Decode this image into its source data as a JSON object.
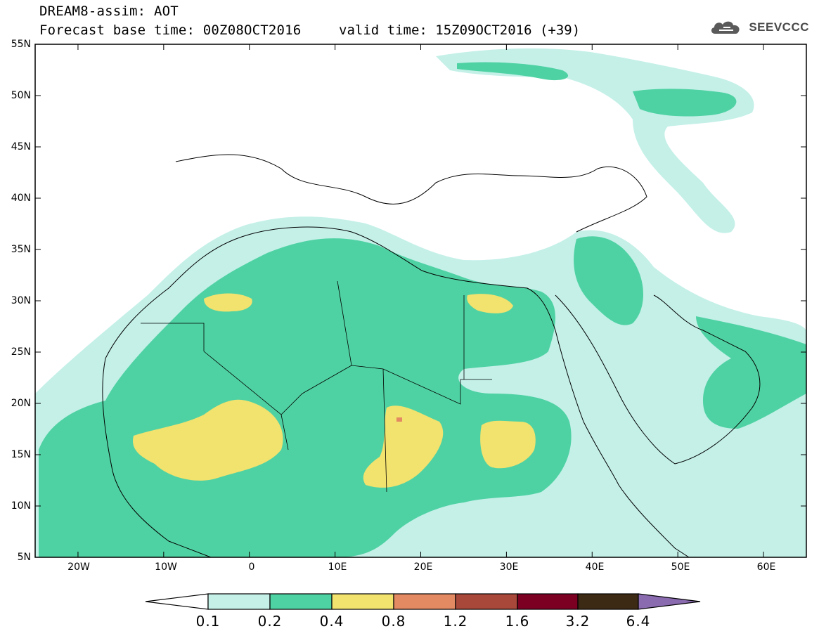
{
  "header": {
    "title": "DREAM8-assim: AOT",
    "forecast_base": "Forecast base time: 00Z08OCT2016",
    "valid_time": "valid time: 15Z09OCT2016 (+39)"
  },
  "logo": {
    "text": "SEEVCCC",
    "icon": "cloud-icon"
  },
  "map": {
    "lat_labels": [
      "55N",
      "50N",
      "45N",
      "40N",
      "35N",
      "30N",
      "25N",
      "20N",
      "15N",
      "10N",
      "5N"
    ],
    "lon_labels": [
      "20W",
      "10W",
      "0",
      "10E",
      "20E",
      "30E",
      "40E",
      "50E",
      "60E"
    ],
    "extent": {
      "lon_min": -25,
      "lon_max": 65,
      "lat_min": 5,
      "lat_max": 55
    }
  },
  "colorbar": {
    "labels": [
      "0.1",
      "0.2",
      "0.4",
      "0.8",
      "1.2",
      "1.6",
      "3.2",
      "6.4"
    ],
    "colors": [
      "#ffffff",
      "#c4f0e8",
      "#4fd2a3",
      "#f2e26e",
      "#e38a62",
      "#a8483a",
      "#7b0022",
      "#3d2a14",
      "#8a6bb0"
    ]
  },
  "colors": {
    "level_01_02": "#c4f0e8",
    "level_02_04": "#4fd2a3",
    "level_04_08": "#f2e26e",
    "level_08_12": "#e38a62"
  }
}
